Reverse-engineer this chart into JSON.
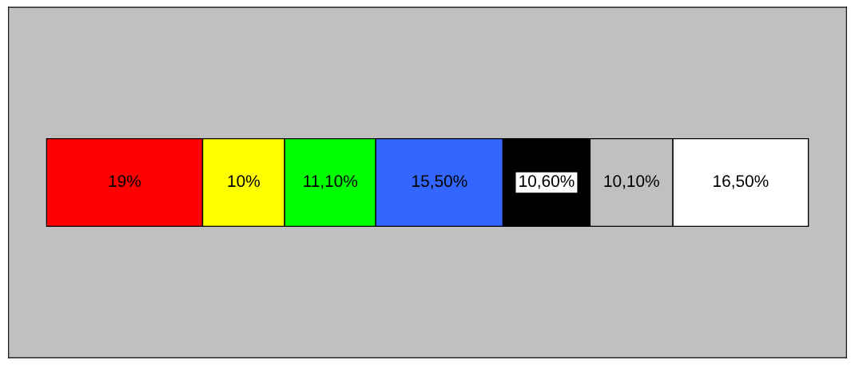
{
  "chart_data": {
    "type": "bar",
    "orientation": "horizontal",
    "stacked": true,
    "categories": [
      null
    ],
    "series": [
      {
        "color": "#ff0000",
        "values": [
          19
        ],
        "value_labels": [
          "19%"
        ]
      },
      {
        "color": "#ffff00",
        "values": [
          10
        ],
        "value_labels": [
          "10%"
        ]
      },
      {
        "color": "#00ff00",
        "values": [
          11.1
        ],
        "value_labels": [
          "11,10%"
        ]
      },
      {
        "color": "#3366ff",
        "values": [
          15.5
        ],
        "value_labels": [
          "15,50%"
        ]
      },
      {
        "color": "#000000",
        "values": [
          10.6
        ],
        "value_labels": [
          "10,60%"
        ]
      },
      {
        "color": "#c0c0c0",
        "values": [
          10.1
        ],
        "value_labels": [
          "10,10%"
        ]
      },
      {
        "color": "#ffffff",
        "values": [
          16.5
        ],
        "value_labels": [
          "16,50%"
        ]
      }
    ]
  }
}
